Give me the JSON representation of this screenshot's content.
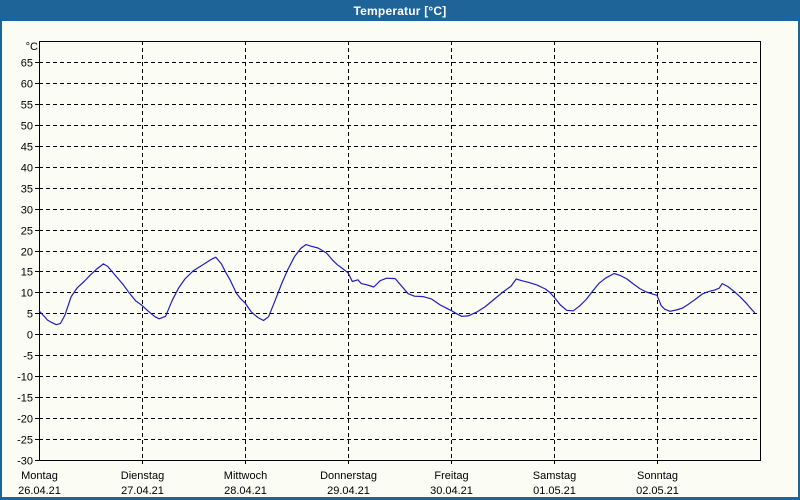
{
  "window": {
    "title": "Temperatur [°C]"
  },
  "colors": {
    "titlebar": "#1e6498",
    "window_background": "#fbfcf3",
    "frame": "#1e6498",
    "grid": "#000000",
    "text": "#000000",
    "line": "#1f1fba"
  },
  "chart_data": {
    "type": "line",
    "title": "Temperatur [°C]",
    "ylabel": "°C",
    "y_unit": "°C",
    "ylim": [
      -30,
      70
    ],
    "y_ticks": [
      65,
      60,
      55,
      50,
      45,
      40,
      35,
      30,
      25,
      20,
      15,
      10,
      5,
      0,
      -5,
      -10,
      -15,
      -20,
      -25,
      -30
    ],
    "grid": "dashed",
    "x_range_hours": [
      0,
      168
    ],
    "x_days": [
      {
        "name": "Montag",
        "date": "26.04.21"
      },
      {
        "name": "Dienstag",
        "date": "27.04.21"
      },
      {
        "name": "Mittwoch",
        "date": "28.04.21"
      },
      {
        "name": "Donnerstag",
        "date": "29.04.21"
      },
      {
        "name": "Freitag",
        "date": "30.04.21"
      },
      {
        "name": "Samstag",
        "date": "01.05.21"
      },
      {
        "name": "Sonntag",
        "date": "02.05.21"
      }
    ],
    "series": [
      {
        "name": "Temperatur",
        "unit": "°C",
        "points": [
          [
            0,
            5.6
          ],
          [
            1,
            4.5
          ],
          [
            2,
            3.4
          ],
          [
            3,
            2.8
          ],
          [
            4,
            2.3
          ],
          [
            5,
            2.6
          ],
          [
            6,
            4.5
          ],
          [
            7.5,
            9.0
          ],
          [
            9,
            11.2
          ],
          [
            10.5,
            12.6
          ],
          [
            12,
            14.2
          ],
          [
            13.5,
            15.6
          ],
          [
            15,
            16.8
          ],
          [
            16,
            16.2
          ],
          [
            17.5,
            14.4
          ],
          [
            19.5,
            12.0
          ],
          [
            21,
            9.9
          ],
          [
            22.5,
            8.0
          ],
          [
            24,
            6.9
          ],
          [
            25.5,
            5.5
          ],
          [
            27,
            4.2
          ],
          [
            28,
            3.7
          ],
          [
            29.5,
            4.3
          ],
          [
            31,
            8.0
          ],
          [
            32.5,
            11.0
          ],
          [
            34,
            13.2
          ],
          [
            36,
            15.2
          ],
          [
            38,
            16.5
          ],
          [
            40,
            17.8
          ],
          [
            41.2,
            18.4
          ],
          [
            42.5,
            16.8
          ],
          [
            43.5,
            14.8
          ],
          [
            44.5,
            13.0
          ],
          [
            46,
            9.8
          ],
          [
            47,
            8.5
          ],
          [
            48,
            7.5
          ],
          [
            49.5,
            5.3
          ],
          [
            51,
            4.0
          ],
          [
            52.3,
            3.3
          ],
          [
            53.5,
            4.2
          ],
          [
            55,
            8.0
          ],
          [
            56.5,
            12.0
          ],
          [
            58,
            15.5
          ],
          [
            59.5,
            18.5
          ],
          [
            61,
            20.5
          ],
          [
            62.2,
            21.4
          ],
          [
            63.5,
            21.0
          ],
          [
            65,
            20.6
          ],
          [
            67,
            19.4
          ],
          [
            68.5,
            17.6
          ],
          [
            69.5,
            16.6
          ],
          [
            70.8,
            15.6
          ],
          [
            72,
            14.7
          ],
          [
            73,
            12.6
          ],
          [
            74.3,
            13.0
          ],
          [
            75.1,
            12.1
          ],
          [
            76.5,
            11.8
          ],
          [
            78,
            11.3
          ],
          [
            79.5,
            12.8
          ],
          [
            81,
            13.4
          ],
          [
            83,
            13.3
          ],
          [
            84.5,
            11.5
          ],
          [
            86,
            9.7
          ],
          [
            87.5,
            9.1
          ],
          [
            89.5,
            9.0
          ],
          [
            91.5,
            8.4
          ],
          [
            93.5,
            7.0
          ],
          [
            95,
            6.2
          ],
          [
            96,
            5.7
          ],
          [
            97.5,
            4.8
          ],
          [
            98.5,
            4.3
          ],
          [
            100,
            4.4
          ],
          [
            102,
            5.3
          ],
          [
            104,
            6.6
          ],
          [
            106,
            8.3
          ],
          [
            108,
            10.0
          ],
          [
            110,
            11.5
          ],
          [
            111.2,
            13.2
          ],
          [
            112.5,
            12.8
          ],
          [
            114,
            12.4
          ],
          [
            116,
            11.8
          ],
          [
            118,
            10.8
          ],
          [
            119,
            10.0
          ],
          [
            120,
            8.9
          ],
          [
            121.5,
            7.0
          ],
          [
            123,
            5.7
          ],
          [
            124.5,
            5.6
          ],
          [
            126,
            6.8
          ],
          [
            127.5,
            8.3
          ],
          [
            129,
            10.3
          ],
          [
            130.5,
            12.2
          ],
          [
            132,
            13.4
          ],
          [
            134,
            14.5
          ],
          [
            135.5,
            14.0
          ],
          [
            137,
            13.2
          ],
          [
            138.5,
            12.0
          ],
          [
            140,
            10.9
          ],
          [
            141.5,
            10.1
          ],
          [
            143,
            9.6
          ],
          [
            144,
            9.3
          ],
          [
            145,
            6.8
          ],
          [
            145.8,
            6.0
          ],
          [
            147,
            5.5
          ],
          [
            148.5,
            5.8
          ],
          [
            150,
            6.3
          ],
          [
            151.5,
            7.3
          ],
          [
            153,
            8.4
          ],
          [
            154.5,
            9.6
          ],
          [
            156,
            10.2
          ],
          [
            157.5,
            10.6
          ],
          [
            158.5,
            11.0
          ],
          [
            159.2,
            12.1
          ],
          [
            160.5,
            11.4
          ],
          [
            162,
            10.2
          ],
          [
            163.5,
            8.8
          ],
          [
            165,
            7.2
          ],
          [
            166,
            6.0
          ],
          [
            166.8,
            5.1
          ]
        ]
      }
    ]
  }
}
